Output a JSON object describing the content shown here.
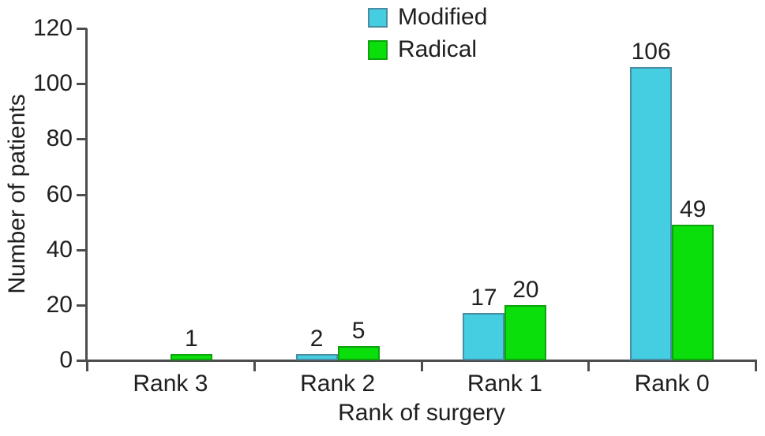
{
  "chart_data": {
    "type": "bar",
    "title": "",
    "xlabel": "Rank of surgery",
    "ylabel": "Number of patients",
    "categories": [
      "Rank 3",
      "Rank 2",
      "Rank 1",
      "Rank 0"
    ],
    "series": [
      {
        "name": "Modified",
        "color": "#45CDE2",
        "border_color": "#4A8CA0",
        "values": [
          null,
          2,
          17,
          106
        ]
      },
      {
        "name": "Radical",
        "color": "#0BDF0B",
        "border_color": "#0CA30C",
        "values": [
          1,
          5,
          20,
          49
        ]
      }
    ],
    "ylim": [
      0,
      120
    ],
    "yticks": [
      0,
      20,
      40,
      60,
      80,
      100,
      120
    ],
    "bar_value_labels": true,
    "grid": false,
    "legend_position": "top-center",
    "axis_color": "#4d4d4d",
    "text_color": "#1f1f1f",
    "background": "#ffffff"
  }
}
